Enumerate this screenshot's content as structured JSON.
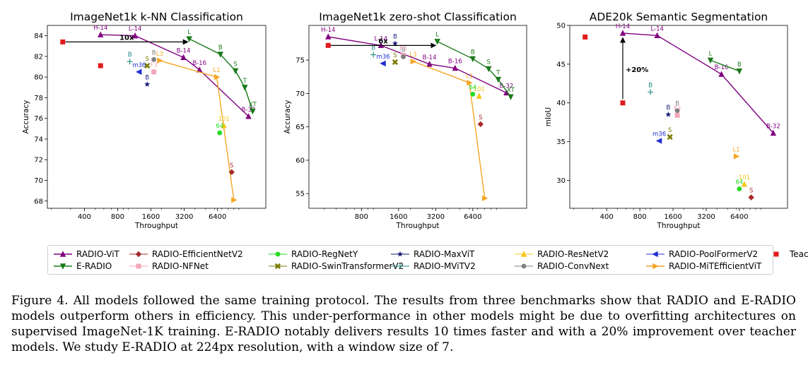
{
  "chart_data": [
    {
      "id": "knn",
      "type": "scatter",
      "title": "ImageNet1k k-NN Classification",
      "xlabel": "Throughput",
      "ylabel": "Accuracy",
      "xscale": "log2",
      "xlim": [
        185,
        17500
      ],
      "ylim": [
        67.3,
        85.0
      ],
      "xticks": [
        400,
        800,
        1600,
        3200,
        6400
      ],
      "yticks": [
        68,
        70,
        72,
        74,
        76,
        78,
        80,
        82,
        84
      ],
      "series": [
        {
          "name": "RADIO-ViT",
          "color": "#800080",
          "marker": "triangle-up",
          "line": true,
          "points": [
            {
              "label": "H-14",
              "x": 560,
              "y": 84.1
            },
            {
              "label": "L-14",
              "x": 1150,
              "y": 84.0
            },
            {
              "label": "B-14",
              "x": 3150,
              "y": 81.9
            },
            {
              "label": "B-16",
              "x": 4400,
              "y": 80.7
            },
            {
              "label": "B-32",
              "x": 12200,
              "y": 76.2
            }
          ]
        },
        {
          "name": "E-RADIO",
          "color": "#1a7a1a",
          "marker": "triangle-down",
          "line": true,
          "points": [
            {
              "label": "L",
              "x": 3550,
              "y": 83.7
            },
            {
              "label": "B",
              "x": 6800,
              "y": 82.2
            },
            {
              "label": "S",
              "x": 9300,
              "y": 80.6
            },
            {
              "label": "T",
              "x": 11300,
              "y": 79.0
            },
            {
              "label": "XT",
              "x": 13300,
              "y": 76.7
            }
          ]
        },
        {
          "name": "RADIO-MiTEfficientViT",
          "color": "#f5a623",
          "marker": "triangle-right",
          "line": true,
          "points": [
            {
              "label": "L3",
              "x": 1920,
              "y": 81.6
            },
            {
              "label": "L1",
              "x": 6300,
              "y": 80.0
            },
            {
              "label": "",
              "x": 9000,
              "y": 68.1
            }
          ]
        },
        {
          "name": "RADIO-ResNetV2",
          "color": "#f5c518",
          "marker": "triangle-up",
          "line": false,
          "points": [
            {
              "label": "101",
              "x": 7300,
              "y": 75.3
            }
          ]
        },
        {
          "name": "RADIO-EfficientNetV2",
          "color": "#a52a2a",
          "marker": "diamond",
          "line": false,
          "points": [
            {
              "label": "S",
              "x": 8600,
              "y": 70.8
            }
          ]
        },
        {
          "name": "RADIO-NFNet",
          "color": "#f4a7b9",
          "marker": "square",
          "line": false,
          "points": [
            {
              "label": "F3",
              "x": 1700,
              "y": 80.5
            }
          ]
        },
        {
          "name": "RADIO-RegNetY",
          "color": "#22dd22",
          "marker": "circle",
          "line": false,
          "points": [
            {
              "label": "64",
              "x": 6700,
              "y": 74.6
            }
          ]
        },
        {
          "name": "RADIO-SwinTransformerV2",
          "color": "#7a7a00",
          "marker": "x",
          "line": false,
          "points": [
            {
              "label": "S",
              "x": 1480,
              "y": 81.1
            }
          ]
        },
        {
          "name": "RADIO-MaxViT",
          "color": "#1a1a7a",
          "marker": "star",
          "line": false,
          "points": [
            {
              "label": "B",
              "x": 1480,
              "y": 79.3
            }
          ]
        },
        {
          "name": "RADIO-MViTV2",
          "color": "#1a8a80",
          "marker": "plus",
          "line": false,
          "points": [
            {
              "label": "B",
              "x": 1030,
              "y": 81.5
            }
          ]
        },
        {
          "name": "RADIO-ConvNext",
          "color": "#808080",
          "marker": "circle",
          "line": false,
          "points": [
            {
              "label": "B",
              "x": 1700,
              "y": 81.7
            }
          ]
        },
        {
          "name": "RADIO-PoolFormerV2",
          "color": "#1f2fd0",
          "marker": "triangle-left",
          "line": false,
          "points": [
            {
              "label": "m36",
              "x": 1250,
              "y": 80.5
            }
          ]
        },
        {
          "name": "Teacher",
          "color": "#e31a1c",
          "marker": "square",
          "line": false,
          "points": [
            {
              "label": "",
              "x": 255,
              "y": 83.4
            },
            {
              "label": "",
              "x": 560,
              "y": 81.1
            }
          ]
        }
      ],
      "annotations": [
        {
          "text": "10x",
          "from": [
            270,
            83.4
          ],
          "to": [
            3450,
            83.4
          ]
        }
      ]
    },
    {
      "id": "zeroshot",
      "type": "scatter",
      "title": "ImageNet1k zero-shot Classification",
      "xlabel": "Throughput",
      "ylabel": "Accuracy",
      "xscale": "log2",
      "xlim": [
        300,
        17500
      ],
      "ylim": [
        52.8,
        80.2
      ],
      "xticks": [
        800,
        1600,
        3200,
        6400
      ],
      "yticks": [
        55,
        60,
        65,
        70,
        75
      ],
      "series": [
        {
          "name": "RADIO-ViT",
          "color": "#800080",
          "marker": "triangle-up",
          "line": true,
          "points": [
            {
              "label": "H-14",
              "x": 430,
              "y": 78.5
            },
            {
              "label": "L-14",
              "x": 1150,
              "y": 77.2
            },
            {
              "label": "B-14",
              "x": 2850,
              "y": 74.4
            },
            {
              "label": "B-16",
              "x": 4600,
              "y": 73.8
            },
            {
              "label": "B-32",
              "x": 12000,
              "y": 70.1
            }
          ]
        },
        {
          "name": "E-RADIO",
          "color": "#1a7a1a",
          "marker": "triangle-down",
          "line": true,
          "points": [
            {
              "label": "L",
              "x": 3300,
              "y": 77.8
            },
            {
              "label": "B",
              "x": 6400,
              "y": 75.2
            },
            {
              "label": "S",
              "x": 8600,
              "y": 73.7
            },
            {
              "label": "T",
              "x": 10300,
              "y": 72.1
            },
            {
              "label": "XT",
              "x": 13000,
              "y": 69.5
            }
          ]
        },
        {
          "name": "RADIO-MiTEfficientViT",
          "color": "#f5a623",
          "marker": "triangle-right",
          "line": true,
          "points": [
            {
              "label": "L3",
              "x": 2100,
              "y": 74.8
            },
            {
              "label": "L1",
              "x": 6000,
              "y": 71.6
            },
            {
              "label": "",
              "x": 8000,
              "y": 54.3
            }
          ]
        },
        {
          "name": "RADIO-ResNetV2",
          "color": "#f5c518",
          "marker": "triangle-up",
          "line": false,
          "points": [
            {
              "label": "101",
              "x": 7200,
              "y": 69.6
            }
          ]
        },
        {
          "name": "RADIO-EfficientNetV2",
          "color": "#a52a2a",
          "marker": "diamond",
          "line": false,
          "points": [
            {
              "label": "S",
              "x": 7400,
              "y": 65.4
            }
          ]
        },
        {
          "name": "RADIO-NFNet",
          "color": "#f4a7b9",
          "marker": "square",
          "line": false,
          "points": [
            {
              "label": "F3",
              "x": 1750,
              "y": 75.7
            }
          ]
        },
        {
          "name": "RADIO-RegNetY",
          "color": "#22dd22",
          "marker": "circle",
          "line": false,
          "points": [
            {
              "label": "64",
              "x": 6400,
              "y": 69.9
            }
          ]
        },
        {
          "name": "RADIO-SwinTransformerV2",
          "color": "#7a7a00",
          "marker": "x",
          "line": false,
          "points": [
            {
              "label": "S",
              "x": 1500,
              "y": 74.7
            }
          ]
        },
        {
          "name": "RADIO-MaxViT",
          "color": "#1a1a7a",
          "marker": "star",
          "line": false,
          "points": [
            {
              "label": "B",
              "x": 1500,
              "y": 77.5
            }
          ]
        },
        {
          "name": "RADIO-MViTV2",
          "color": "#1a8a80",
          "marker": "plus",
          "line": false,
          "points": [
            {
              "label": "B",
              "x": 1000,
              "y": 75.8
            }
          ]
        },
        {
          "name": "RADIO-ConvNext",
          "color": "#808080",
          "marker": "circle",
          "line": false,
          "points": [
            {
              "label": "B",
              "x": 1750,
              "y": 75.5
            }
          ]
        },
        {
          "name": "RADIO-PoolFormerV2",
          "color": "#1f2fd0",
          "marker": "triangle-left",
          "line": false,
          "points": [
            {
              "label": "m36",
              "x": 1200,
              "y": 74.5
            }
          ]
        },
        {
          "name": "Teacher",
          "color": "#e31a1c",
          "marker": "square",
          "line": false,
          "points": [
            {
              "label": "",
              "x": 430,
              "y": 77.2
            }
          ]
        }
      ],
      "annotations": [
        {
          "text": "6x",
          "from": [
            450,
            77.2
          ],
          "to": [
            3200,
            77.2
          ]
        }
      ]
    },
    {
      "id": "ade20k",
      "type": "scatter",
      "title": "ADE20k Semantic Segmentation",
      "xlabel": "Throughput",
      "ylabel": "mIoU",
      "xscale": "log2",
      "xlim": [
        185,
        17500
      ],
      "ylim": [
        26.4,
        50.0
      ],
      "xticks": [
        400,
        800,
        1600,
        3200,
        6400
      ],
      "yticks": [
        30,
        35,
        40,
        45,
        50
      ],
      "series": [
        {
          "name": "RADIO-ViT",
          "color": "#800080",
          "marker": "triangle-up",
          "line": true,
          "points": [
            {
              "label": "H-14",
              "x": 560,
              "y": 49.0
            },
            {
              "label": "L-14",
              "x": 1150,
              "y": 48.7
            },
            {
              "label": "B-16",
              "x": 4400,
              "y": 43.7
            },
            {
              "label": "B-32",
              "x": 13000,
              "y": 36.1
            }
          ]
        },
        {
          "name": "E-RADIO",
          "color": "#1a7a1a",
          "marker": "triangle-down",
          "line": true,
          "points": [
            {
              "label": "L",
              "x": 3500,
              "y": 45.5
            },
            {
              "label": "B",
              "x": 6400,
              "y": 44.1
            }
          ]
        },
        {
          "name": "RADIO-MiTEfficientViT",
          "color": "#f5a623",
          "marker": "triangle-right",
          "line": false,
          "points": [
            {
              "label": "L1",
              "x": 6000,
              "y": 33.1
            }
          ]
        },
        {
          "name": "RADIO-ResNetV2",
          "color": "#f5c518",
          "marker": "triangle-up",
          "line": false,
          "points": [
            {
              "label": "101",
              "x": 7100,
              "y": 29.5
            }
          ]
        },
        {
          "name": "RADIO-EfficientNetV2",
          "color": "#a52a2a",
          "marker": "diamond",
          "line": false,
          "points": [
            {
              "label": "S",
              "x": 8200,
              "y": 27.8
            }
          ]
        },
        {
          "name": "RADIO-NFNet",
          "color": "#f4a7b9",
          "marker": "square",
          "line": false,
          "points": [
            {
              "label": "F3",
              "x": 1750,
              "y": 38.4
            }
          ]
        },
        {
          "name": "RADIO-RegNetY",
          "color": "#22dd22",
          "marker": "circle",
          "line": false,
          "points": [
            {
              "label": "64",
              "x": 6400,
              "y": 28.9
            }
          ]
        },
        {
          "name": "RADIO-SwinTransformerV2",
          "color": "#7a7a00",
          "marker": "x",
          "line": false,
          "points": [
            {
              "label": "S",
              "x": 1500,
              "y": 35.6
            }
          ]
        },
        {
          "name": "RADIO-MaxViT",
          "color": "#1a1a7a",
          "marker": "star",
          "line": false,
          "points": [
            {
              "label": "B",
              "x": 1450,
              "y": 38.5
            }
          ]
        },
        {
          "name": "RADIO-MViTV2",
          "color": "#1a8a80",
          "marker": "plus",
          "line": false,
          "points": [
            {
              "label": "B",
              "x": 1000,
              "y": 41.4
            }
          ]
        },
        {
          "name": "RADIO-ConvNext",
          "color": "#808080",
          "marker": "circle",
          "line": false,
          "points": [
            {
              "label": "B",
              "x": 1750,
              "y": 39.0
            }
          ]
        },
        {
          "name": "RADIO-PoolFormerV2",
          "color": "#1f2fd0",
          "marker": "triangle-left",
          "line": false,
          "points": [
            {
              "label": "m36",
              "x": 1200,
              "y": 35.1
            }
          ]
        },
        {
          "name": "Teacher",
          "color": "#e31a1c",
          "marker": "square",
          "line": false,
          "points": [
            {
              "label": "",
              "x": 255,
              "y": 48.5
            },
            {
              "label": "",
              "x": 560,
              "y": 40.0
            }
          ]
        }
      ],
      "annotations": [
        {
          "text": "+20%",
          "from": [
            560,
            40.5
          ],
          "to": [
            560,
            48.4
          ]
        }
      ]
    }
  ],
  "legend": {
    "items": [
      {
        "name": "RADIO-ViT",
        "color": "#800080",
        "marker": "triangle-up"
      },
      {
        "name": "E-RADIO",
        "color": "#1a7a1a",
        "marker": "triangle-down"
      },
      {
        "name": "RADIO-EfficientNetV2",
        "color": "#a52a2a",
        "marker": "diamond"
      },
      {
        "name": "RADIO-NFNet",
        "color": "#f4a7b9",
        "marker": "square"
      },
      {
        "name": "RADIO-RegNetY",
        "color": "#22dd22",
        "marker": "circle"
      },
      {
        "name": "RADIO-SwinTransformerV2",
        "color": "#7a7a00",
        "marker": "x"
      },
      {
        "name": "RADIO-MaxViT",
        "color": "#1a1a7a",
        "marker": "star"
      },
      {
        "name": "RADIO-MViTV2",
        "color": "#1a8a80",
        "marker": "plus"
      },
      {
        "name": "RADIO-ResNetV2",
        "color": "#f5c518",
        "marker": "triangle-up"
      },
      {
        "name": "RADIO-ConvNext",
        "color": "#808080",
        "marker": "circle"
      },
      {
        "name": "RADIO-PoolFormerV2",
        "color": "#1f2fd0",
        "marker": "triangle-left"
      },
      {
        "name": "RADIO-MiTEfficientViT",
        "color": "#f5a623",
        "marker": "triangle-right"
      },
      {
        "name": "Teacher",
        "color": "#e31a1c",
        "marker": "square"
      }
    ]
  },
  "caption": "Figure 4.  All models followed the same training protocol.  The results from three benchmarks show that RADIO and E-RADIO models outperform others in efficiency. This under-performance in other models might be due to overfitting architectures on supervised ImageNet-1K training. E-RADIO notably delivers results 10 times faster and with a 20% improvement over teacher models. We study E-RADIO at 224px resolution, with a window size of 7."
}
